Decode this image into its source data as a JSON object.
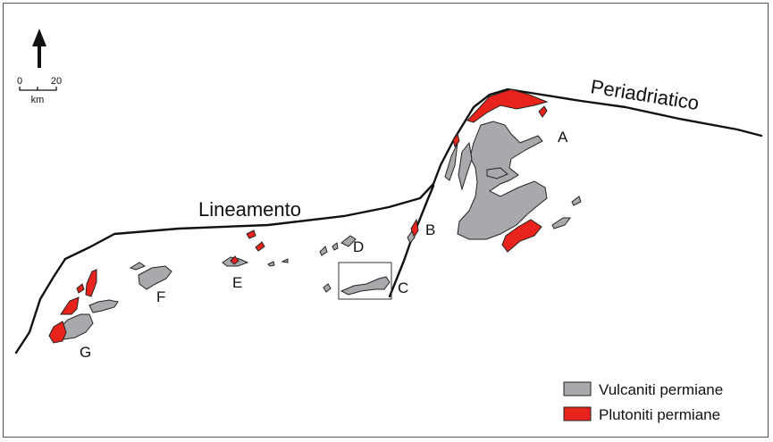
{
  "map": {
    "labels": {
      "periadriatico": "Periadriatico",
      "lineamento": "Lineamento",
      "A": "A",
      "B": "B",
      "C": "C",
      "D": "D",
      "E": "E",
      "F": "F",
      "G": "G"
    },
    "scale": {
      "min": "0",
      "max": "20",
      "unit": "km"
    }
  },
  "legend": {
    "items": [
      {
        "label": "Vulcaniti permiane",
        "color": "#a8a9ad"
      },
      {
        "label": "Plutoniti permiane",
        "color": "#e8231c"
      }
    ]
  }
}
